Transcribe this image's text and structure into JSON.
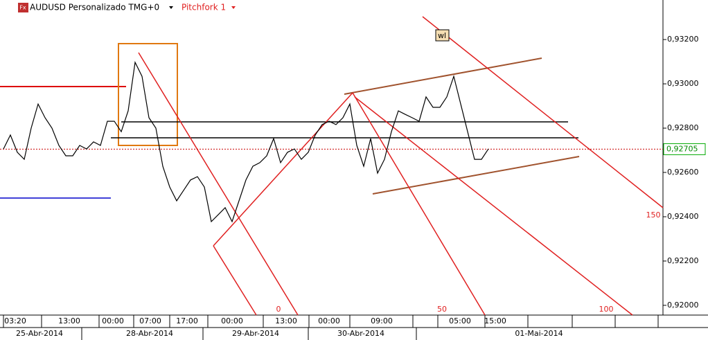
{
  "chart_data": {
    "type": "line",
    "symbol": "AUDUSD Personalizado TMG+0",
    "study": "Pitchfork 1",
    "tag": "wl",
    "fork_levels": [
      "0",
      "50",
      "100",
      "150"
    ],
    "values": [
      0.92706,
      0.92769,
      0.92691,
      0.92659,
      0.928,
      0.92909,
      0.92847,
      0.928,
      0.92722,
      0.92675,
      0.92675,
      0.92722,
      0.92706,
      0.92738,
      0.92722,
      0.92831,
      0.92831,
      0.92784,
      0.92878,
      0.93097,
      0.93034,
      0.92847,
      0.928,
      0.92628,
      0.92534,
      0.92472,
      0.92519,
      0.92566,
      0.92581,
      0.92534,
      0.92378,
      0.92409,
      0.92441,
      0.92378,
      0.92472,
      0.92566,
      0.92628,
      0.92644,
      0.92675,
      0.92753,
      0.92644,
      0.92691,
      0.92706,
      0.92659,
      0.92691,
      0.92769,
      0.92816,
      0.92831,
      0.92816,
      0.92847,
      0.92909,
      0.92722,
      0.92628,
      0.92753,
      0.92597,
      0.92659,
      0.92784,
      0.92878,
      0.92862,
      0.92847,
      0.92831,
      0.92941,
      0.92894,
      0.92894,
      0.92941,
      0.93034,
      0.92909,
      0.92784,
      0.92659,
      0.92659,
      0.92706
    ],
    "color": "#000000",
    "last_price": {
      "value": 0.92705,
      "label": "0,92705"
    },
    "ylim": [
      0.91956,
      0.93316
    ],
    "yticks": [
      {
        "value": 0.92,
        "label": "0,92000"
      },
      {
        "value": 0.922,
        "label": "0,92200"
      },
      {
        "value": 0.924,
        "label": "0,92400"
      },
      {
        "value": 0.926,
        "label": "0,92600"
      },
      {
        "value": 0.928,
        "label": "0,92800"
      },
      {
        "value": 0.93,
        "label": "0,93000"
      },
      {
        "value": 0.932,
        "label": "0,93200"
      }
    ],
    "time_labels": [
      "03:20",
      "13:00",
      "00:00",
      "07:00",
      "17:00",
      "00:00",
      "13:00",
      "00:00",
      "09:00",
      "05:00",
      "15:00"
    ],
    "date_labels": [
      "25-Abr-2014",
      "28-Abr-2014",
      "29-Abr-2014",
      "30-Abr-2014",
      "01-Mai-2014"
    ]
  }
}
